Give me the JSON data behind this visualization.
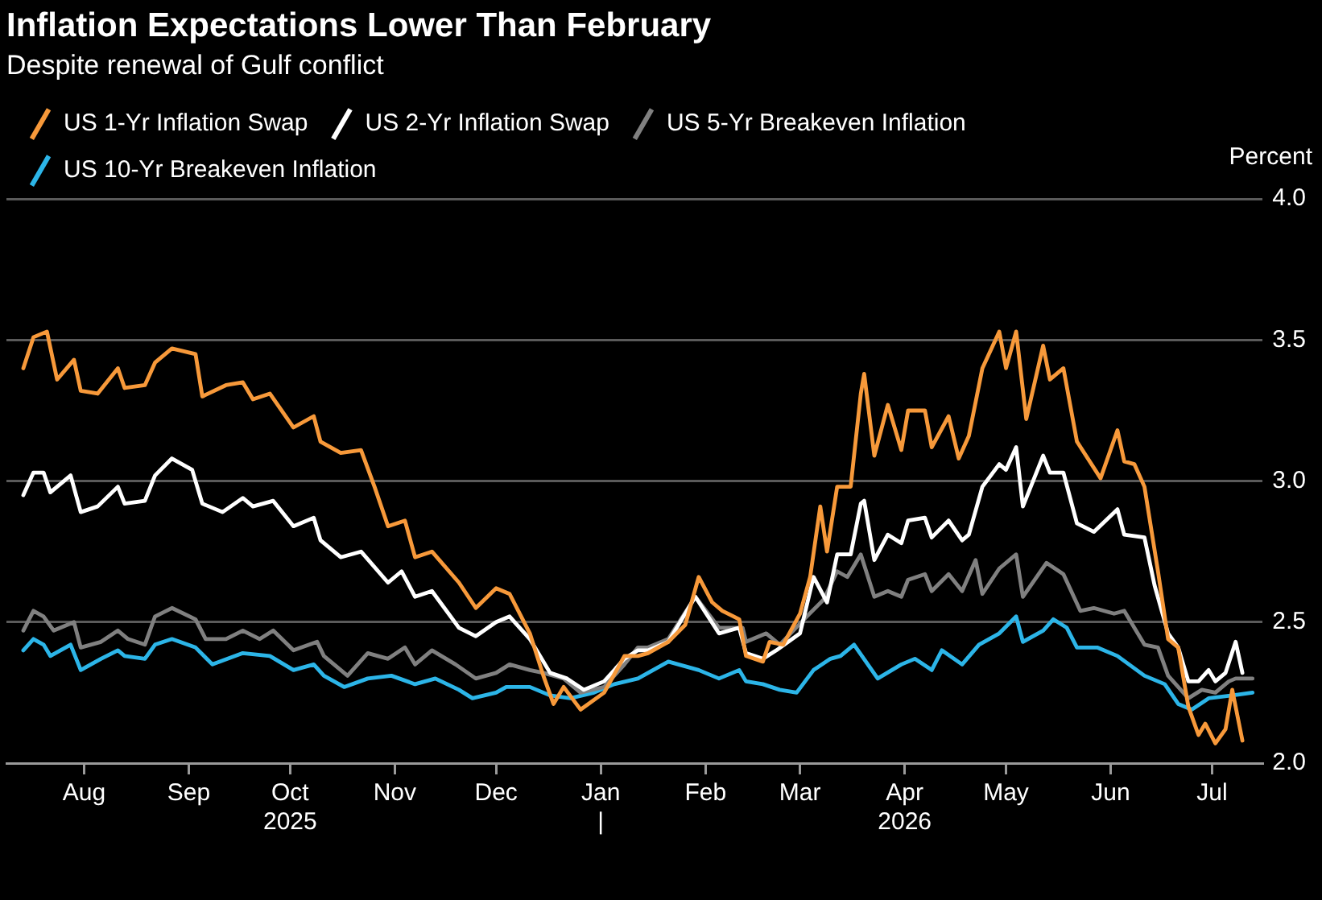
{
  "chart_data": {
    "type": "line",
    "title": "Inflation Expectations Lower Than February",
    "subtitle": "Despite renewal of Gulf conflict",
    "ylabel": "Percent",
    "xlim": [
      "2025-07-09",
      "2026-07-16"
    ],
    "xticks": [
      {
        "value": "2025-08-01",
        "label": "Aug"
      },
      {
        "value": "2025-09-01",
        "label": "Sep"
      },
      {
        "value": "2025-10-01",
        "label": "Oct\n2025"
      },
      {
        "value": "2025-11-01",
        "label": "Nov"
      },
      {
        "value": "2025-12-01",
        "label": "Dec"
      },
      {
        "value": "2026-01-01",
        "label": "Jan\n|"
      },
      {
        "value": "2026-02-01",
        "label": "Feb"
      },
      {
        "value": "2026-03-01",
        "label": "Mar"
      },
      {
        "value": "2026-04-01",
        "label": "Apr\n2026"
      },
      {
        "value": "2026-05-01",
        "label": "May"
      },
      {
        "value": "2026-06-01",
        "label": "Jun"
      },
      {
        "value": "2026-07-01",
        "label": "Jul"
      }
    ],
    "ylim": [
      2.0,
      4.0
    ],
    "yticks": [
      {
        "value": 2,
        "label": "2.0"
      },
      {
        "value": 2.5,
        "label": "2.5"
      },
      {
        "value": 3,
        "label": "3.0"
      },
      {
        "value": 3.5,
        "label": "3.5"
      },
      {
        "value": 4,
        "label": "4.0"
      }
    ],
    "grid": "y",
    "legend": "top left",
    "marker": "none",
    "line_style": "solid",
    "series": [
      {
        "name": "US 1-Yr Inflation Swap",
        "color": "#f7993a",
        "x": [
          "2025-07-14",
          "2025-07-17",
          "2025-07-21",
          "2025-07-24",
          "2025-07-29",
          "2025-07-31",
          "2025-08-05",
          "2025-08-11",
          "2025-08-13",
          "2025-08-19",
          "2025-08-22",
          "2025-08-27",
          "2025-09-03",
          "2025-09-05",
          "2025-09-12",
          "2025-09-17",
          "2025-09-20",
          "2025-09-25",
          "2025-10-02",
          "2025-10-08",
          "2025-10-10",
          "2025-10-16",
          "2025-10-22",
          "2025-10-26",
          "2025-10-30",
          "2025-11-04",
          "2025-11-07",
          "2025-11-12",
          "2025-11-20",
          "2025-11-25",
          "2025-12-01",
          "2025-12-05",
          "2025-12-11",
          "2025-12-15",
          "2025-12-18",
          "2025-12-21",
          "2025-12-26",
          "2026-01-02",
          "2026-01-08",
          "2026-01-12",
          "2026-01-15",
          "2026-01-21",
          "2026-01-26",
          "2026-01-30",
          "2026-02-03",
          "2026-02-06",
          "2026-02-11",
          "2026-02-13",
          "2026-02-18",
          "2026-02-20",
          "2026-02-24",
          "2026-03-01",
          "2026-03-04",
          "2026-03-07",
          "2026-03-09",
          "2026-03-12",
          "2026-03-16",
          "2026-03-19",
          "2026-03-20",
          "2026-03-23",
          "2026-03-27",
          "2026-03-31",
          "2026-04-02",
          "2026-04-07",
          "2026-04-09",
          "2026-04-14",
          "2026-04-17",
          "2026-04-20",
          "2026-04-24",
          "2026-04-29",
          "2026-05-01",
          "2026-05-04",
          "2026-05-07",
          "2026-05-12",
          "2026-05-14",
          "2026-05-18",
          "2026-05-22",
          "2026-05-29",
          "2026-06-03",
          "2026-06-05",
          "2026-06-08",
          "2026-06-11",
          "2026-06-15",
          "2026-06-18",
          "2026-06-21",
          "2026-06-24",
          "2026-06-27",
          "2026-06-29",
          "2026-07-02",
          "2026-07-05",
          "2026-07-07",
          "2026-07-10"
        ],
        "values": [
          3.4,
          3.51,
          3.53,
          3.36,
          3.43,
          3.32,
          3.31,
          3.4,
          3.33,
          3.34,
          3.42,
          3.47,
          3.45,
          3.3,
          3.34,
          3.35,
          3.29,
          3.31,
          3.19,
          3.23,
          3.14,
          3.1,
          3.11,
          2.98,
          2.84,
          2.86,
          2.73,
          2.75,
          2.64,
          2.55,
          2.62,
          2.6,
          2.46,
          2.31,
          2.21,
          2.27,
          2.19,
          2.25,
          2.38,
          2.38,
          2.39,
          2.43,
          2.49,
          2.66,
          2.57,
          2.54,
          2.51,
          2.38,
          2.36,
          2.43,
          2.42,
          2.53,
          2.66,
          2.91,
          2.75,
          2.98,
          2.98,
          3.31,
          3.38,
          3.09,
          3.27,
          3.11,
          3.25,
          3.25,
          3.12,
          3.23,
          3.08,
          3.16,
          3.4,
          3.53,
          3.4,
          3.53,
          3.22,
          3.48,
          3.36,
          3.4,
          3.14,
          3.01,
          3.18,
          3.07,
          3.06,
          2.98,
          2.68,
          2.44,
          2.41,
          2.2,
          2.1,
          2.14,
          2.07,
          2.12,
          2.26,
          2.08
        ]
      },
      {
        "name": "US 2-Yr Inflation Swap",
        "color": "#ffffff",
        "x": [
          "2025-07-14",
          "2025-07-17",
          "2025-07-20",
          "2025-07-22",
          "2025-07-28",
          "2025-07-31",
          "2025-08-05",
          "2025-08-11",
          "2025-08-13",
          "2025-08-19",
          "2025-08-22",
          "2025-08-27",
          "2025-09-02",
          "2025-09-05",
          "2025-09-11",
          "2025-09-17",
          "2025-09-20",
          "2025-09-26",
          "2025-10-02",
          "2025-10-08",
          "2025-10-10",
          "2025-10-16",
          "2025-10-22",
          "2025-10-30",
          "2025-11-03",
          "2025-11-07",
          "2025-11-12",
          "2025-11-20",
          "2025-11-25",
          "2025-12-01",
          "2025-12-05",
          "2025-12-11",
          "2025-12-17",
          "2025-12-22",
          "2025-12-27",
          "2026-01-02",
          "2026-01-08",
          "2026-01-12",
          "2026-01-15",
          "2026-01-21",
          "2026-01-29",
          "2026-02-05",
          "2026-02-11",
          "2026-02-13",
          "2026-02-18",
          "2026-02-22",
          "2026-03-01",
          "2026-03-05",
          "2026-03-09",
          "2026-03-12",
          "2026-03-16",
          "2026-03-19",
          "2026-03-20",
          "2026-03-23",
          "2026-03-27",
          "2026-03-31",
          "2026-04-02",
          "2026-04-07",
          "2026-04-09",
          "2026-04-14",
          "2026-04-18",
          "2026-04-20",
          "2026-04-24",
          "2026-04-29",
          "2026-05-01",
          "2026-05-04",
          "2026-05-06",
          "2026-05-12",
          "2026-05-14",
          "2026-05-18",
          "2026-05-22",
          "2026-05-27",
          "2026-06-03",
          "2026-06-05",
          "2026-06-11",
          "2026-06-14",
          "2026-06-18",
          "2026-06-21",
          "2026-06-24",
          "2026-06-27",
          "2026-06-30",
          "2026-07-02",
          "2026-07-05",
          "2026-07-08",
          "2026-07-10"
        ],
        "values": [
          2.95,
          3.03,
          3.03,
          2.96,
          3.02,
          2.89,
          2.91,
          2.98,
          2.92,
          2.93,
          3.02,
          3.08,
          3.04,
          2.92,
          2.89,
          2.94,
          2.91,
          2.93,
          2.84,
          2.87,
          2.79,
          2.73,
          2.75,
          2.64,
          2.68,
          2.59,
          2.61,
          2.48,
          2.45,
          2.5,
          2.52,
          2.44,
          2.32,
          2.3,
          2.26,
          2.29,
          2.37,
          2.4,
          2.4,
          2.43,
          2.59,
          2.46,
          2.48,
          2.39,
          2.37,
          2.4,
          2.46,
          2.66,
          2.57,
          2.74,
          2.74,
          2.92,
          2.93,
          2.72,
          2.81,
          2.78,
          2.86,
          2.87,
          2.8,
          2.86,
          2.79,
          2.81,
          2.98,
          3.06,
          3.04,
          3.12,
          2.91,
          3.09,
          3.03,
          3.03,
          2.85,
          2.82,
          2.9,
          2.81,
          2.8,
          2.63,
          2.46,
          2.41,
          2.29,
          2.29,
          2.33,
          2.29,
          2.32,
          2.43,
          2.32
        ]
      },
      {
        "name": "US 5-Yr Breakeven Inflation",
        "color": "#808080",
        "x": [
          "2025-07-14",
          "2025-07-17",
          "2025-07-20",
          "2025-07-23",
          "2025-07-29",
          "2025-07-31",
          "2025-08-06",
          "2025-08-11",
          "2025-08-14",
          "2025-08-19",
          "2025-08-22",
          "2025-08-27",
          "2025-09-03",
          "2025-09-06",
          "2025-09-12",
          "2025-09-17",
          "2025-09-22",
          "2025-09-26",
          "2025-10-02",
          "2025-10-09",
          "2025-10-11",
          "2025-10-18",
          "2025-10-24",
          "2025-10-30",
          "2025-11-04",
          "2025-11-07",
          "2025-11-12",
          "2025-11-19",
          "2025-11-25",
          "2025-12-01",
          "2025-12-05",
          "2025-12-11",
          "2025-12-15",
          "2025-12-21",
          "2025-12-26",
          "2026-01-02",
          "2026-01-08",
          "2026-01-12",
          "2026-01-15",
          "2026-01-21",
          "2026-01-29",
          "2026-02-05",
          "2026-02-12",
          "2026-02-13",
          "2026-02-19",
          "2026-02-23",
          "2026-03-03",
          "2026-03-08",
          "2026-03-12",
          "2026-03-15",
          "2026-03-19",
          "2026-03-23",
          "2026-03-27",
          "2026-03-31",
          "2026-04-02",
          "2026-04-07",
          "2026-04-09",
          "2026-04-14",
          "2026-04-18",
          "2026-04-22",
          "2026-04-24",
          "2026-04-29",
          "2026-05-04",
          "2026-05-06",
          "2026-05-13",
          "2026-05-18",
          "2026-05-23",
          "2026-05-27",
          "2026-06-02",
          "2026-06-05",
          "2026-06-11",
          "2026-06-15",
          "2026-06-18",
          "2026-06-24",
          "2026-06-28",
          "2026-07-02",
          "2026-07-06",
          "2026-07-08",
          "2026-07-13"
        ],
        "values": [
          2.47,
          2.54,
          2.52,
          2.47,
          2.5,
          2.41,
          2.43,
          2.47,
          2.44,
          2.42,
          2.52,
          2.55,
          2.51,
          2.44,
          2.44,
          2.47,
          2.44,
          2.47,
          2.4,
          2.43,
          2.38,
          2.31,
          2.39,
          2.37,
          2.41,
          2.35,
          2.4,
          2.35,
          2.3,
          2.32,
          2.35,
          2.33,
          2.32,
          2.3,
          2.25,
          2.27,
          2.35,
          2.41,
          2.41,
          2.44,
          2.59,
          2.48,
          2.48,
          2.43,
          2.46,
          2.42,
          2.52,
          2.58,
          2.68,
          2.66,
          2.74,
          2.59,
          2.61,
          2.59,
          2.65,
          2.67,
          2.61,
          2.67,
          2.61,
          2.72,
          2.6,
          2.69,
          2.74,
          2.59,
          2.71,
          2.67,
          2.54,
          2.55,
          2.53,
          2.54,
          2.42,
          2.41,
          2.31,
          2.23,
          2.26,
          2.25,
          2.29,
          2.3,
          2.3
        ]
      },
      {
        "name": "US 10-Yr Breakeven Inflation",
        "color": "#2cb5e8",
        "x": [
          "2025-07-14",
          "2025-07-17",
          "2025-07-20",
          "2025-07-22",
          "2025-07-28",
          "2025-07-31",
          "2025-08-06",
          "2025-08-11",
          "2025-08-13",
          "2025-08-19",
          "2025-08-22",
          "2025-08-27",
          "2025-09-03",
          "2025-09-08",
          "2025-09-17",
          "2025-09-25",
          "2025-10-02",
          "2025-10-08",
          "2025-10-11",
          "2025-10-17",
          "2025-10-24",
          "2025-10-31",
          "2025-11-07",
          "2025-11-13",
          "2025-11-20",
          "2025-11-24",
          "2025-12-01",
          "2025-12-04",
          "2025-12-11",
          "2025-12-17",
          "2025-12-23",
          "2025-12-30",
          "2026-01-05",
          "2026-01-12",
          "2026-01-21",
          "2026-01-30",
          "2026-02-05",
          "2026-02-11",
          "2026-02-13",
          "2026-02-18",
          "2026-02-23",
          "2026-02-28",
          "2026-03-05",
          "2026-03-10",
          "2026-03-13",
          "2026-03-17",
          "2026-03-24",
          "2026-03-31",
          "2026-04-04",
          "2026-04-09",
          "2026-04-12",
          "2026-04-18",
          "2026-04-23",
          "2026-04-29",
          "2026-05-04",
          "2026-05-06",
          "2026-05-12",
          "2026-05-15",
          "2026-05-19",
          "2026-05-22",
          "2026-05-28",
          "2026-06-03",
          "2026-06-11",
          "2026-06-17",
          "2026-06-21",
          "2026-06-25",
          "2026-06-30",
          "2026-07-07",
          "2026-07-13"
        ],
        "values": [
          2.4,
          2.44,
          2.42,
          2.38,
          2.42,
          2.33,
          2.37,
          2.4,
          2.38,
          2.37,
          2.42,
          2.44,
          2.41,
          2.35,
          2.39,
          2.38,
          2.33,
          2.35,
          2.31,
          2.27,
          2.3,
          2.31,
          2.28,
          2.3,
          2.26,
          2.23,
          2.25,
          2.27,
          2.27,
          2.24,
          2.23,
          2.25,
          2.28,
          2.3,
          2.36,
          2.33,
          2.3,
          2.33,
          2.29,
          2.28,
          2.26,
          2.25,
          2.33,
          2.37,
          2.38,
          2.42,
          2.3,
          2.35,
          2.37,
          2.33,
          2.4,
          2.35,
          2.42,
          2.46,
          2.52,
          2.43,
          2.47,
          2.51,
          2.48,
          2.41,
          2.41,
          2.38,
          2.31,
          2.28,
          2.21,
          2.19,
          2.23,
          2.24,
          2.25
        ]
      }
    ]
  }
}
